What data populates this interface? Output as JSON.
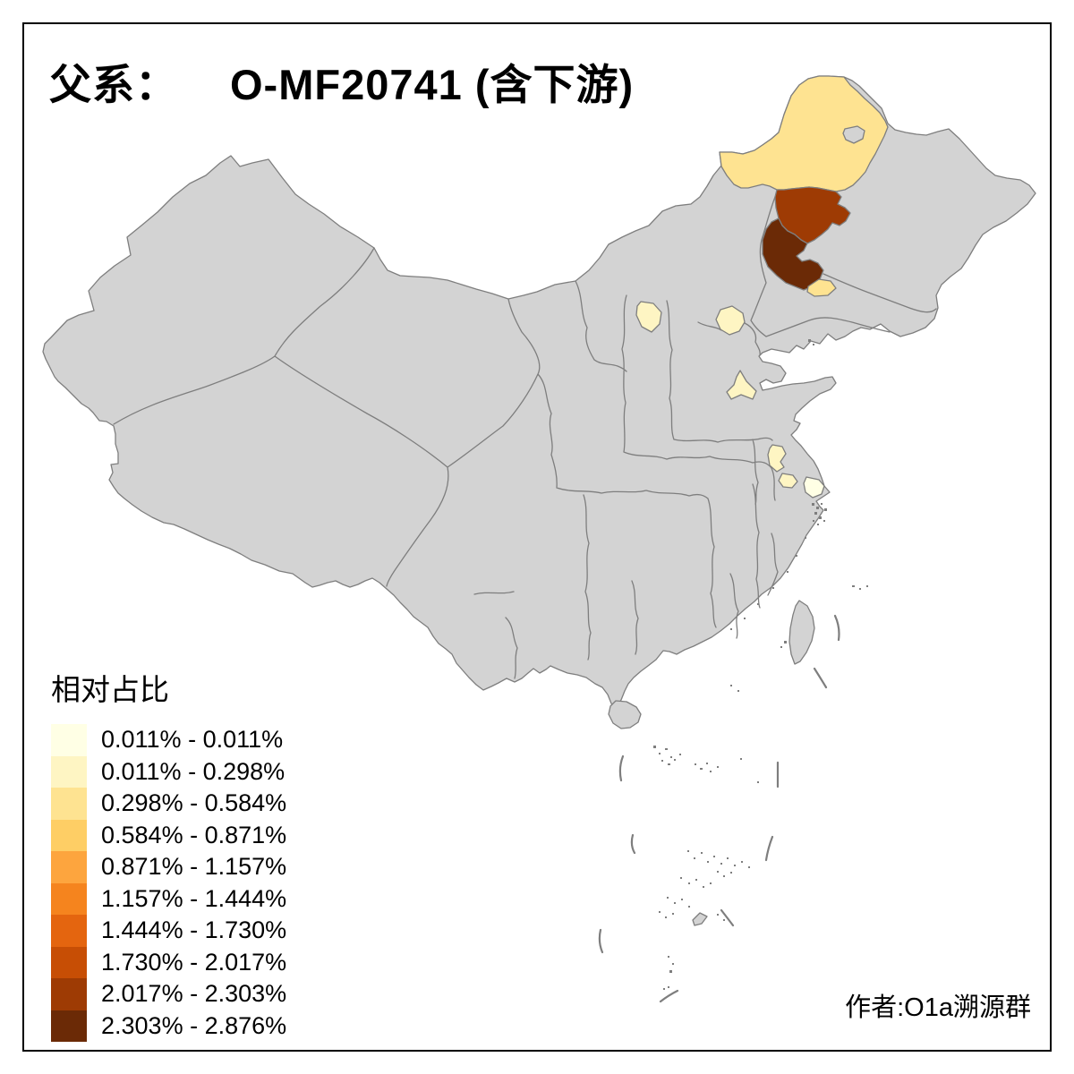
{
  "title": {
    "prefix": "父系：",
    "main": "O-MF20741 (含下游)",
    "full": "父系： O-MF20741 (含下游)"
  },
  "legend": {
    "title": "相对占比",
    "classes": [
      {
        "range": "0.011% - 0.011%",
        "color": "#FFFFE5"
      },
      {
        "range": "0.011% - 0.298%",
        "color": "#FEF5C3"
      },
      {
        "range": "0.298% - 0.584%",
        "color": "#FEE391"
      },
      {
        "range": "0.584% - 0.871%",
        "color": "#FECE65"
      },
      {
        "range": "0.871% - 1.157%",
        "color": "#FDA53E"
      },
      {
        "range": "1.157% - 1.444%",
        "color": "#F5841E"
      },
      {
        "range": "1.444% - 1.730%",
        "color": "#E4650F"
      },
      {
        "range": "1.730% - 2.017%",
        "color": "#C74E05"
      },
      {
        "range": "2.017% - 2.303%",
        "color": "#9E3B04"
      },
      {
        "range": "2.303% - 2.876%",
        "color": "#6B2A06"
      }
    ]
  },
  "credit": "作者:O1a溯源群",
  "map": {
    "base_fill": "#D3D3D3",
    "border_color": "#7E7E7E",
    "background": "#FFFFFF",
    "frame_color": "#000000",
    "regions": [
      {
        "id": "far-northeast-large-region",
        "legend_class": 3,
        "color": "#FEE391"
      },
      {
        "id": "northeast-upper-red-region",
        "legend_class": 9,
        "color": "#9E3B04"
      },
      {
        "id": "northeast-dark-brown-region",
        "legend_class": 10,
        "color": "#6B2A06"
      },
      {
        "id": "northeast-small-yellow-patch",
        "legend_class": 3,
        "color": "#FEE391"
      },
      {
        "id": "north-central-pale-patch",
        "legend_class": 2,
        "color": "#FEF5C3"
      },
      {
        "id": "beijing-area-pale-patch",
        "legend_class": 2,
        "color": "#FEF5C3"
      },
      {
        "id": "shandong-pale-patch",
        "legend_class": 2,
        "color": "#FEF5C3"
      },
      {
        "id": "jiangsu-north-pale-patch",
        "legend_class": 2,
        "color": "#FEF5C3"
      },
      {
        "id": "jiangsu-south-pale-patch",
        "legend_class": 2,
        "color": "#FEF5C3"
      },
      {
        "id": "shanghai-area-palest-patch",
        "legend_class": 1,
        "color": "#FFFFE5"
      }
    ]
  },
  "chart_data": {
    "type": "choropleth-map",
    "title": "父系： O-MF20741 (含下游)",
    "legend_title": "相对占比",
    "value_unit": "%",
    "bins": [
      "0.011% - 0.011%",
      "0.011% - 0.298%",
      "0.298% - 0.584%",
      "0.584% - 0.871%",
      "0.871% - 1.157%",
      "1.157% - 1.444%",
      "1.444% - 1.730%",
      "1.730% - 2.017%",
      "2.017% - 2.303%",
      "2.303% - 2.876%"
    ],
    "bin_colors": [
      "#FFFFE5",
      "#FEF5C3",
      "#FEE391",
      "#FECE65",
      "#FDA53E",
      "#F5841E",
      "#E4650F",
      "#C74E05",
      "#9E3B04",
      "#6B2A06"
    ],
    "colored_regions": [
      {
        "location": "far-northeast large region (top of map)",
        "bin": "0.298% - 0.584%"
      },
      {
        "location": "northeast, region below the large yellow one",
        "bin": "2.017% - 2.303%"
      },
      {
        "location": "northeast, darkest region",
        "bin": "2.303% - 2.876%"
      },
      {
        "location": "northeast, small patch below darkest region",
        "bin": "0.298% - 0.584%"
      },
      {
        "location": "north-central small patch",
        "bin": "0.011% - 0.298%"
      },
      {
        "location": "small patch near Beijing area",
        "bin": "0.011% - 0.298%"
      },
      {
        "location": "small arrow-shaped patch, Shandong area",
        "bin": "0.011% - 0.298%"
      },
      {
        "location": "small patch, northern Jiangsu area",
        "bin": "0.011% - 0.298%"
      },
      {
        "location": "small patch, southern Jiangsu area",
        "bin": "0.011% - 0.298%"
      },
      {
        "location": "coastal patch near Shanghai",
        "bin": "0.011% - 0.011%"
      }
    ],
    "uncolored_fill_meaning": "no data / zero share (gray)"
  }
}
